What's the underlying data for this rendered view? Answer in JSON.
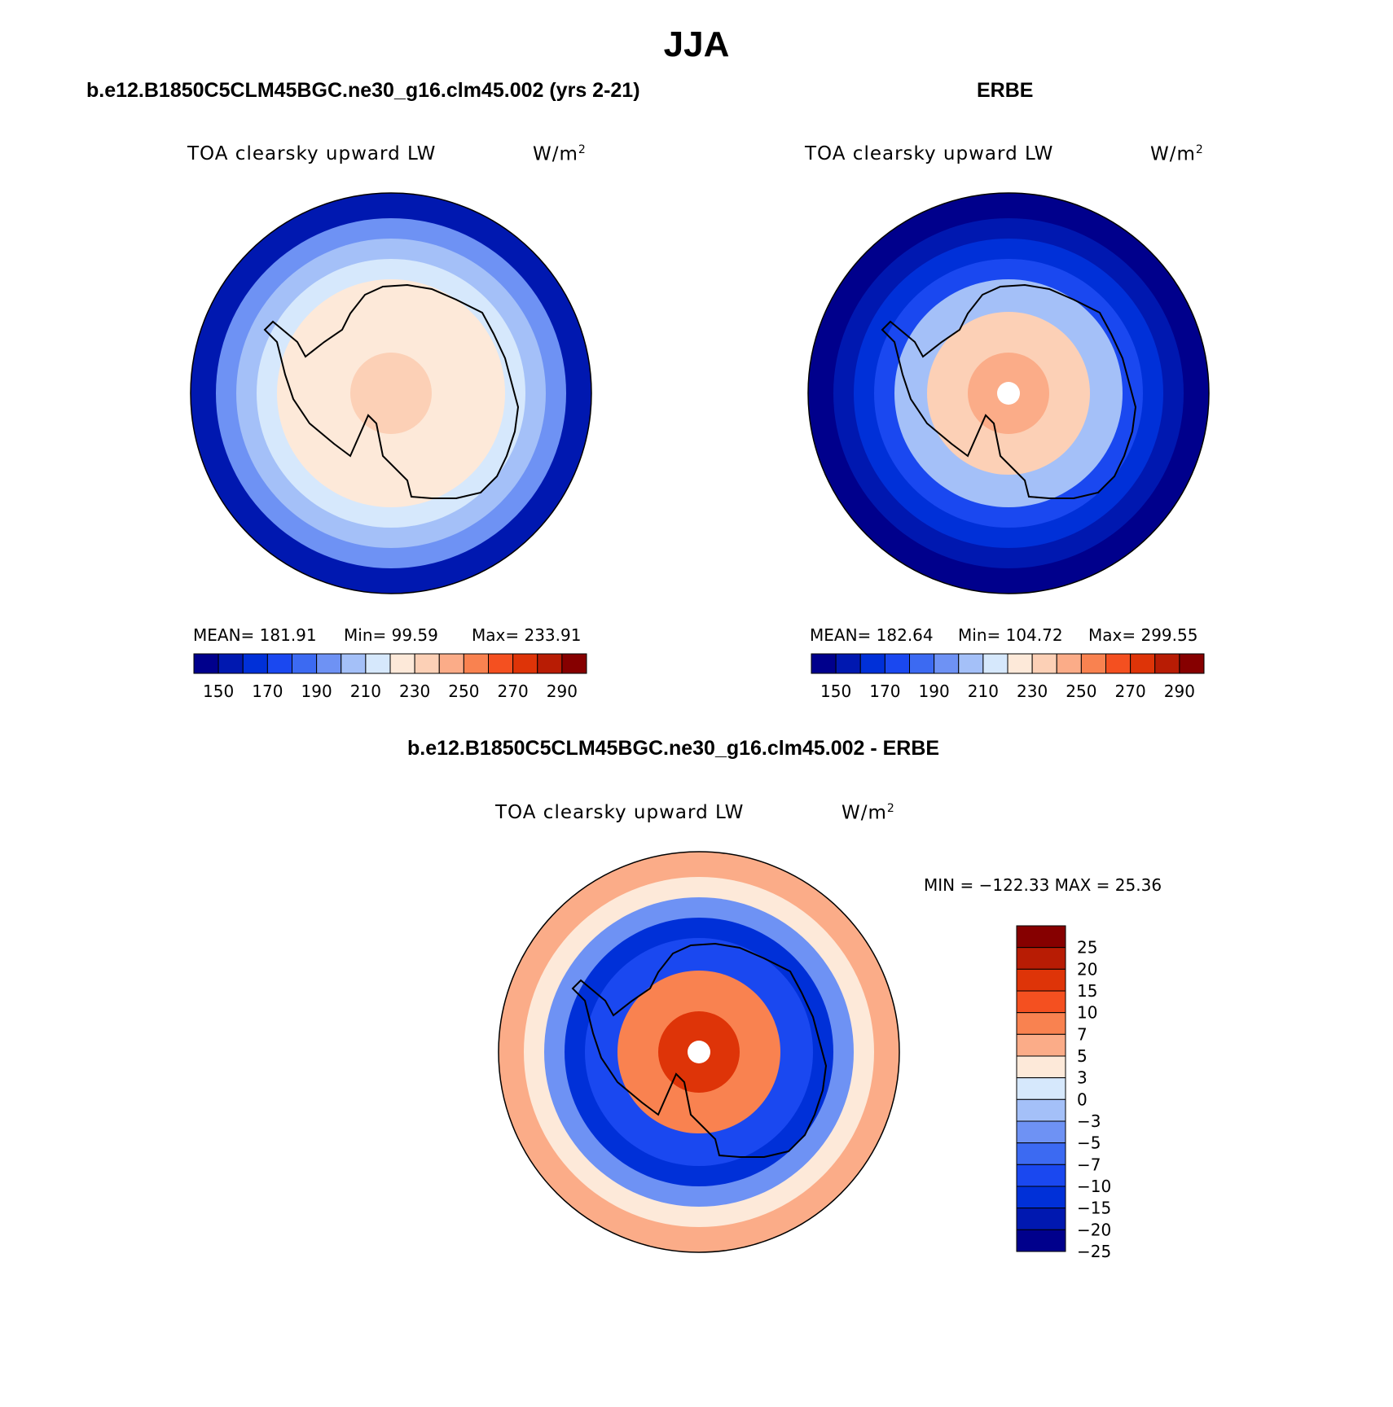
{
  "figure": {
    "season": "JJA",
    "panels": [
      {
        "id": "model",
        "heading": "b.e12.B1850C5CLM45BGC.ne30_g16.clm45.002 (yrs 2-21)",
        "variable": "TOA clearsky upward LW",
        "units": "W/m",
        "units_sup": "2",
        "stats": {
          "mean": "MEAN= 181.91",
          "min": "Min=   99.59",
          "max": "Max= 233.91"
        },
        "colorbar": {
          "tick_labels": [
            "150",
            "170",
            "190",
            "210",
            "230",
            "250",
            "270",
            "290"
          ]
        },
        "rings": [
          1,
          5,
          6,
          7,
          8,
          8,
          9
        ],
        "pole_dot": false
      },
      {
        "id": "obs",
        "heading": "ERBE",
        "variable": "TOA clearsky upward LW",
        "units": "W/m",
        "units_sup": "2",
        "stats": {
          "mean": "MEAN= 182.64",
          "min": "Min= 104.72",
          "max": "Max= 299.55"
        },
        "colorbar": {
          "tick_labels": [
            "150",
            "170",
            "190",
            "210",
            "230",
            "250",
            "270",
            "290"
          ]
        },
        "rings": [
          0,
          1,
          2,
          3,
          6,
          9,
          10
        ],
        "pole_dot": true
      },
      {
        "id": "diff",
        "heading": "b.e12.B1850C5CLM45BGC.ne30_g16.clm45.002 - ERBE",
        "variable": "TOA clearsky upward LW",
        "units": "W/m",
        "units_sup": "2",
        "stats": {
          "minmax": "MIN = −122.33 MAX =  25.36"
        },
        "colorbar": {
          "tick_labels": [
            "25",
            "20",
            "15",
            "10",
            "7",
            "5",
            "3",
            "0",
            "−3",
            "−5",
            "−7",
            "−10",
            "−15",
            "−20",
            "−25"
          ]
        },
        "rings": [
          5,
          6,
          9,
          12,
          11,
          4,
          2
        ],
        "pole_dot": true
      }
    ],
    "abs_colors": [
      "#00008c",
      "#0018b0",
      "#0030d8",
      "#1a48f0",
      "#3c6af2",
      "#6e92f4",
      "#a4c0f8",
      "#d6e8fc",
      "#fde9d9",
      "#fcd0b6",
      "#fbac88",
      "#f98250",
      "#f45020",
      "#de3408",
      "#b81c04",
      "#860000"
    ],
    "diff_colors": [
      "#860000",
      "#b81c04",
      "#de3408",
      "#f45020",
      "#f98250",
      "#fbac88",
      "#fde9d9",
      "#d6e8fc",
      "#a4c0f8",
      "#6e92f4",
      "#3c6af2",
      "#1a48f0",
      "#0030d8",
      "#0018b0",
      "#00008c"
    ]
  }
}
